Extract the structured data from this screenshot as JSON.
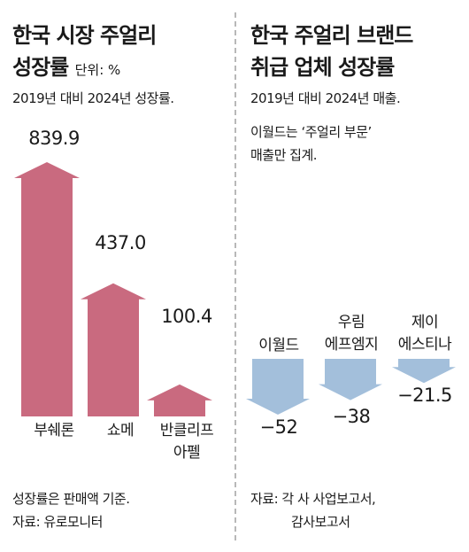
{
  "left": {
    "title_line1": "한국 시장 주얼리",
    "title_line2": "성장률",
    "unit": "단위: %",
    "description": "2019년 대비 2024년 성장률.",
    "footnote_lines": [
      "성장률은 판매액 기준.",
      "자료: 유로모니터"
    ]
  },
  "right": {
    "title_line1": "한국 주얼리 브랜드",
    "title_line2": "취급 업체 성장률",
    "description_lines": [
      "2019년 대비 2024년 매출.",
      "이월드는 ‘주얼리 부문’",
      "매출만 집계."
    ],
    "footnote_lines": [
      "자료: 각 사 사업보고서,",
      "감사보고서"
    ]
  },
  "colors": {
    "positive_bar": "#c96a7f",
    "negative_arrow": "#a3bfdb",
    "divider": "#b8b8b8"
  },
  "chart_data": [
    {
      "type": "bar",
      "categories": [
        "부쉐론",
        "쇼메",
        "반클리프 아펠"
      ],
      "category_lines": [
        [
          "부쉐론"
        ],
        [
          "쇼메"
        ],
        [
          "반클리프",
          "아펠"
        ]
      ],
      "values": [
        839.9,
        437.0,
        100.4
      ],
      "value_labels": [
        "839.9",
        "437.0",
        "100.4"
      ],
      "ylim": [
        0,
        839.9
      ],
      "marker": "up-arrow"
    },
    {
      "type": "bar",
      "categories": [
        "이월드",
        "우림 에프엠지",
        "제이 에스티나"
      ],
      "category_lines": [
        [
          "이월드"
        ],
        [
          "우림",
          "에프엠지"
        ],
        [
          "제이",
          "에스티나"
        ]
      ],
      "values": [
        -52,
        -38,
        -21.5
      ],
      "value_labels": [
        "−52",
        "−38",
        "−21.5"
      ],
      "marker": "down-arrow"
    }
  ]
}
